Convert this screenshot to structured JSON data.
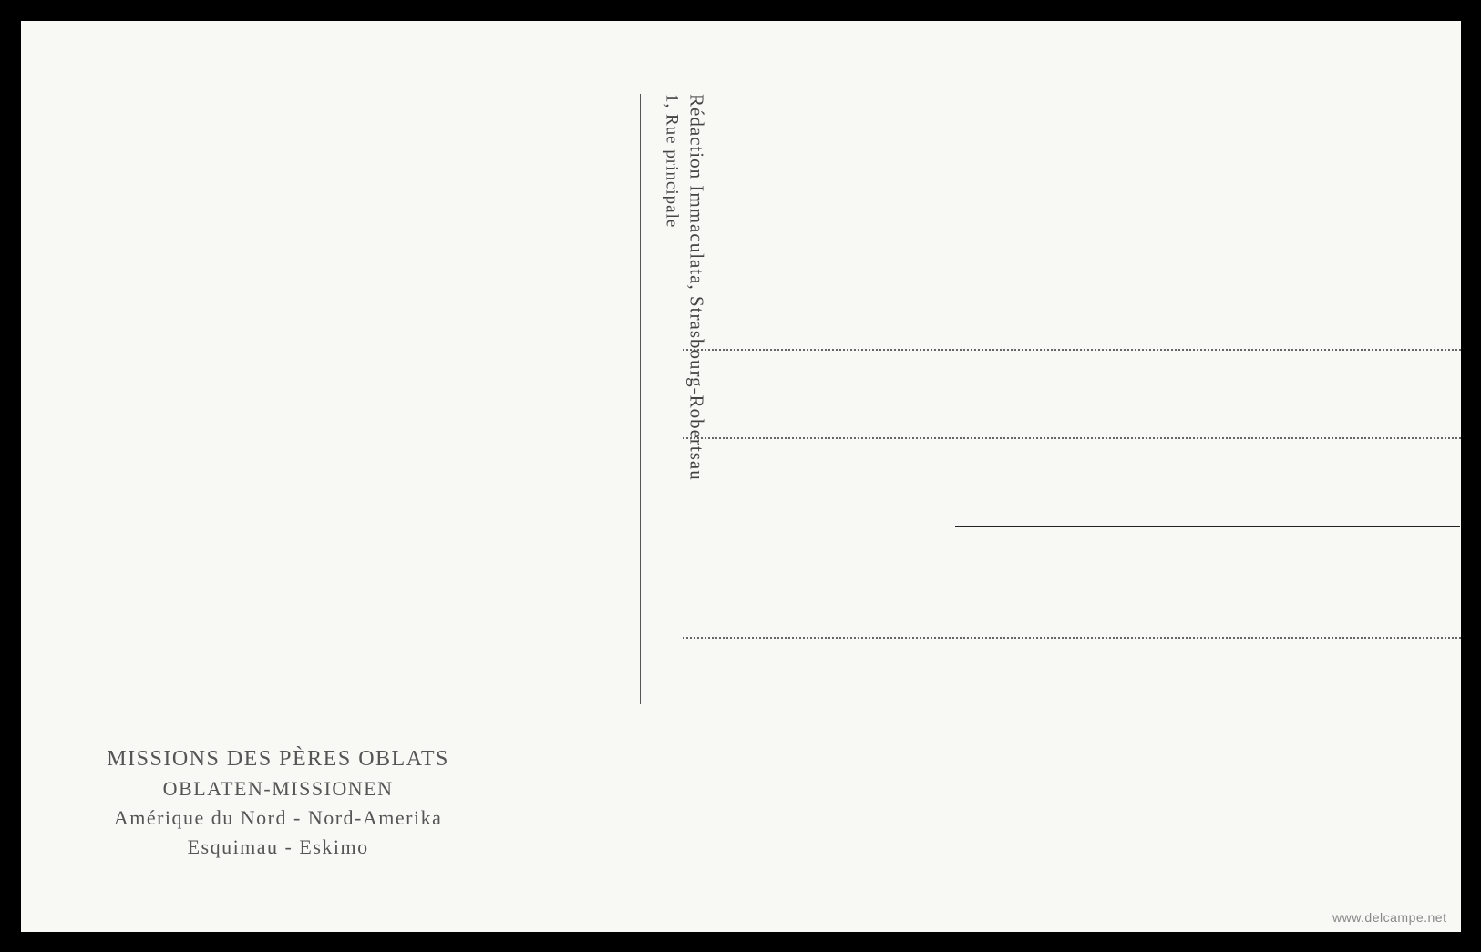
{
  "postcard": {
    "background_color": "#f8f8f5",
    "publisher": {
      "line1": "Rédaction Immaculata, Strasbourg-Robertsau",
      "line2": "1, Rue principale"
    },
    "mission_text": {
      "line1": "MISSIONS DES PÈRES OBLATS",
      "line2": "OBLATEN-MISSIONEN",
      "line3": "Amérique du Nord - Nord-Amerika",
      "line4": "Esquimau - Eskimo"
    },
    "watermark": "www.delcampe.net",
    "styling": {
      "text_color": "#555",
      "divider_color": "#555",
      "dotted_line_color": "#666",
      "solid_line_color": "#222",
      "title_fontsize": 24,
      "subtitle_fontsize": 22,
      "vertical_text_fontsize": 21
    }
  }
}
